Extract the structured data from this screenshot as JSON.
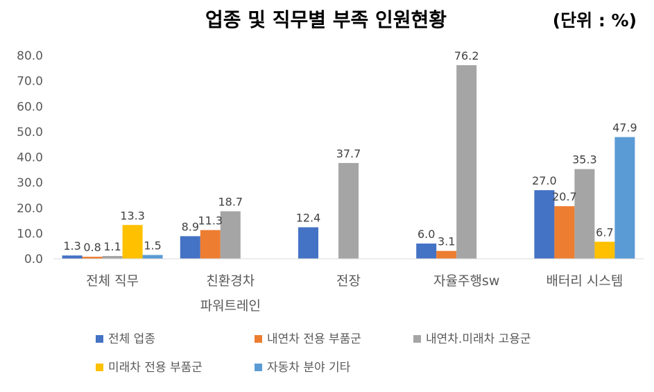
{
  "chart_data": {
    "type": "bar",
    "title": "업종 및 직무별 부족 인원현황",
    "unit": "(단위 : %)",
    "ylim": [
      0,
      80
    ],
    "yticks": [
      "0.0",
      "10.0",
      "20.0",
      "30.0",
      "40.0",
      "50.0",
      "60.0",
      "70.0",
      "80.0"
    ],
    "categories": [
      [
        "전체 직무"
      ],
      [
        "친환경차",
        "파워트레인"
      ],
      [
        "전장"
      ],
      [
        "자율주행sw"
      ],
      [
        "배터리 시스템"
      ]
    ],
    "series": [
      {
        "name": "전체 업종",
        "color": "#4472c4",
        "values": [
          1.3,
          8.9,
          12.4,
          6.0,
          27.0
        ],
        "labels": [
          "1.3",
          "8.9",
          "12.4",
          "6.0",
          "27.0"
        ]
      },
      {
        "name": "내연차 전용 부품군",
        "color": "#ed7d31",
        "values": [
          0.8,
          11.3,
          null,
          3.1,
          20.7
        ],
        "labels": [
          "0.8",
          "11.3",
          "",
          "3.1",
          "20.7"
        ]
      },
      {
        "name": "내연차.미래차 고용군",
        "color": "#a5a5a5",
        "values": [
          1.1,
          18.7,
          37.7,
          76.2,
          35.3
        ],
        "labels": [
          "1.1",
          "18.7",
          "37.7",
          "76.2",
          "35.3"
        ]
      },
      {
        "name": "미래차 전용 부품군",
        "color": "#ffc000",
        "values": [
          13.3,
          null,
          null,
          null,
          6.7
        ],
        "labels": [
          "13.3",
          "",
          "",
          "",
          "6.7"
        ]
      },
      {
        "name": "자동차 분야 기타",
        "color": "#5b9bd5",
        "values": [
          1.5,
          null,
          null,
          null,
          47.9
        ],
        "labels": [
          "1.5",
          "",
          "",
          "",
          "47.9"
        ]
      }
    ],
    "grid": false,
    "legend_position": "bottom"
  }
}
